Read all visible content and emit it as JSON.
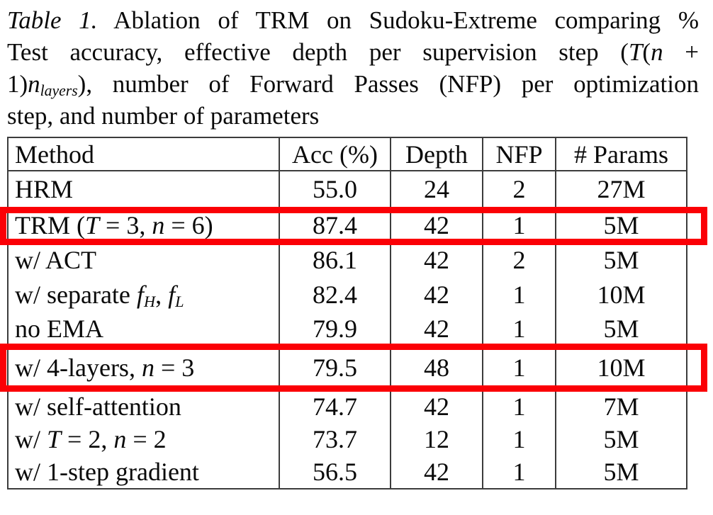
{
  "caption": {
    "label": "Table 1.",
    "full_text": "Table 1. Ablation of TRM on Sudoku-Extreme comparing % Test accuracy, effective depth per supervision step (T(n + 1)n_layers), number of Forward Passes (NFP) per optimization step, and number of parameters",
    "lines": [
      [
        {
          "t": "Table 1.",
          "s": "i"
        },
        {
          "t": " Ablation of TRM on Sudoku-Extreme comparing %",
          "s": ""
        }
      ],
      [
        {
          "t": "Test accuracy, effective depth per supervision step (",
          "s": ""
        },
        {
          "t": "T",
          "s": "i"
        },
        {
          "t": "(",
          "s": ""
        },
        {
          "t": "n",
          "s": "i"
        },
        {
          "t": " +",
          "s": ""
        }
      ],
      [
        {
          "t": "1)",
          "s": ""
        },
        {
          "t": "n",
          "s": "i"
        },
        {
          "t": "layers",
          "s": "sub"
        },
        {
          "t": "), number of Forward Passes (NFP) per optimization",
          "s": ""
        }
      ],
      [
        {
          "t": "step, and number of parameters",
          "s": ""
        }
      ]
    ]
  },
  "table": {
    "headers": [
      "Method",
      "Acc (%)",
      "Depth",
      "NFP",
      "# Params"
    ],
    "rows": [
      {
        "method": [
          {
            "t": "HRM",
            "s": ""
          }
        ],
        "acc": "55.0",
        "depth": "24",
        "nfp": "2",
        "params": "27M",
        "hline_after": true,
        "highlight": false
      },
      {
        "method": [
          {
            "t": "TRM (",
            "s": ""
          },
          {
            "t": "T",
            "s": "i"
          },
          {
            "t": " = 3, ",
            "s": ""
          },
          {
            "t": "n",
            "s": "i"
          },
          {
            "t": " = 6)",
            "s": ""
          }
        ],
        "acc": "87.4",
        "depth": "42",
        "nfp": "1",
        "params": "5M",
        "hline_after": true,
        "highlight": true
      },
      {
        "method": [
          {
            "t": "w/ ACT",
            "s": ""
          }
        ],
        "acc": "86.1",
        "depth": "42",
        "nfp": "2",
        "params": "5M",
        "hline_after": false,
        "highlight": false
      },
      {
        "method": [
          {
            "t": "w/ separate ",
            "s": ""
          },
          {
            "t": "f",
            "s": "i"
          },
          {
            "t": "H",
            "s": "sub"
          },
          {
            "t": ", ",
            "s": ""
          },
          {
            "t": "f",
            "s": "i"
          },
          {
            "t": "L",
            "s": "sub"
          }
        ],
        "acc": "82.4",
        "depth": "42",
        "nfp": "1",
        "params": "10M",
        "hline_after": false,
        "highlight": false
      },
      {
        "method": [
          {
            "t": "no EMA",
            "s": ""
          }
        ],
        "acc": "79.9",
        "depth": "42",
        "nfp": "1",
        "params": "5M",
        "hline_after": true,
        "highlight": false
      },
      {
        "method": [
          {
            "t": "w/ 4-layers, ",
            "s": ""
          },
          {
            "t": "n",
            "s": "i"
          },
          {
            "t": " = 3",
            "s": ""
          }
        ],
        "acc": "79.5",
        "depth": "48",
        "nfp": "1",
        "params": "10M",
        "hline_after": true,
        "highlight": true
      },
      {
        "method": [
          {
            "t": "w/ self-attention",
            "s": ""
          }
        ],
        "acc": "74.7",
        "depth": "42",
        "nfp": "1",
        "params": "7M",
        "hline_after": false,
        "highlight": false
      },
      {
        "method": [
          {
            "t": "w/ ",
            "s": ""
          },
          {
            "t": "T",
            "s": "i"
          },
          {
            "t": " = 2, ",
            "s": ""
          },
          {
            "t": "n",
            "s": "i"
          },
          {
            "t": " = 2",
            "s": ""
          }
        ],
        "acc": "73.7",
        "depth": "12",
        "nfp": "1",
        "params": "5M",
        "hline_after": false,
        "highlight": false
      },
      {
        "method": [
          {
            "t": "w/ 1-step gradient",
            "s": ""
          }
        ],
        "acc": "56.5",
        "depth": "42",
        "nfp": "1",
        "params": "5M",
        "hline_after": false,
        "highlight": false
      }
    ]
  },
  "annotations": {
    "highlight_color": "#fb0006",
    "line_color": "#3c3c3c",
    "text_color": "#0a0a0a",
    "highlighted_methods": [
      "TRM (T = 3, n = 6)",
      "w/ 4-layers, n = 3"
    ]
  }
}
